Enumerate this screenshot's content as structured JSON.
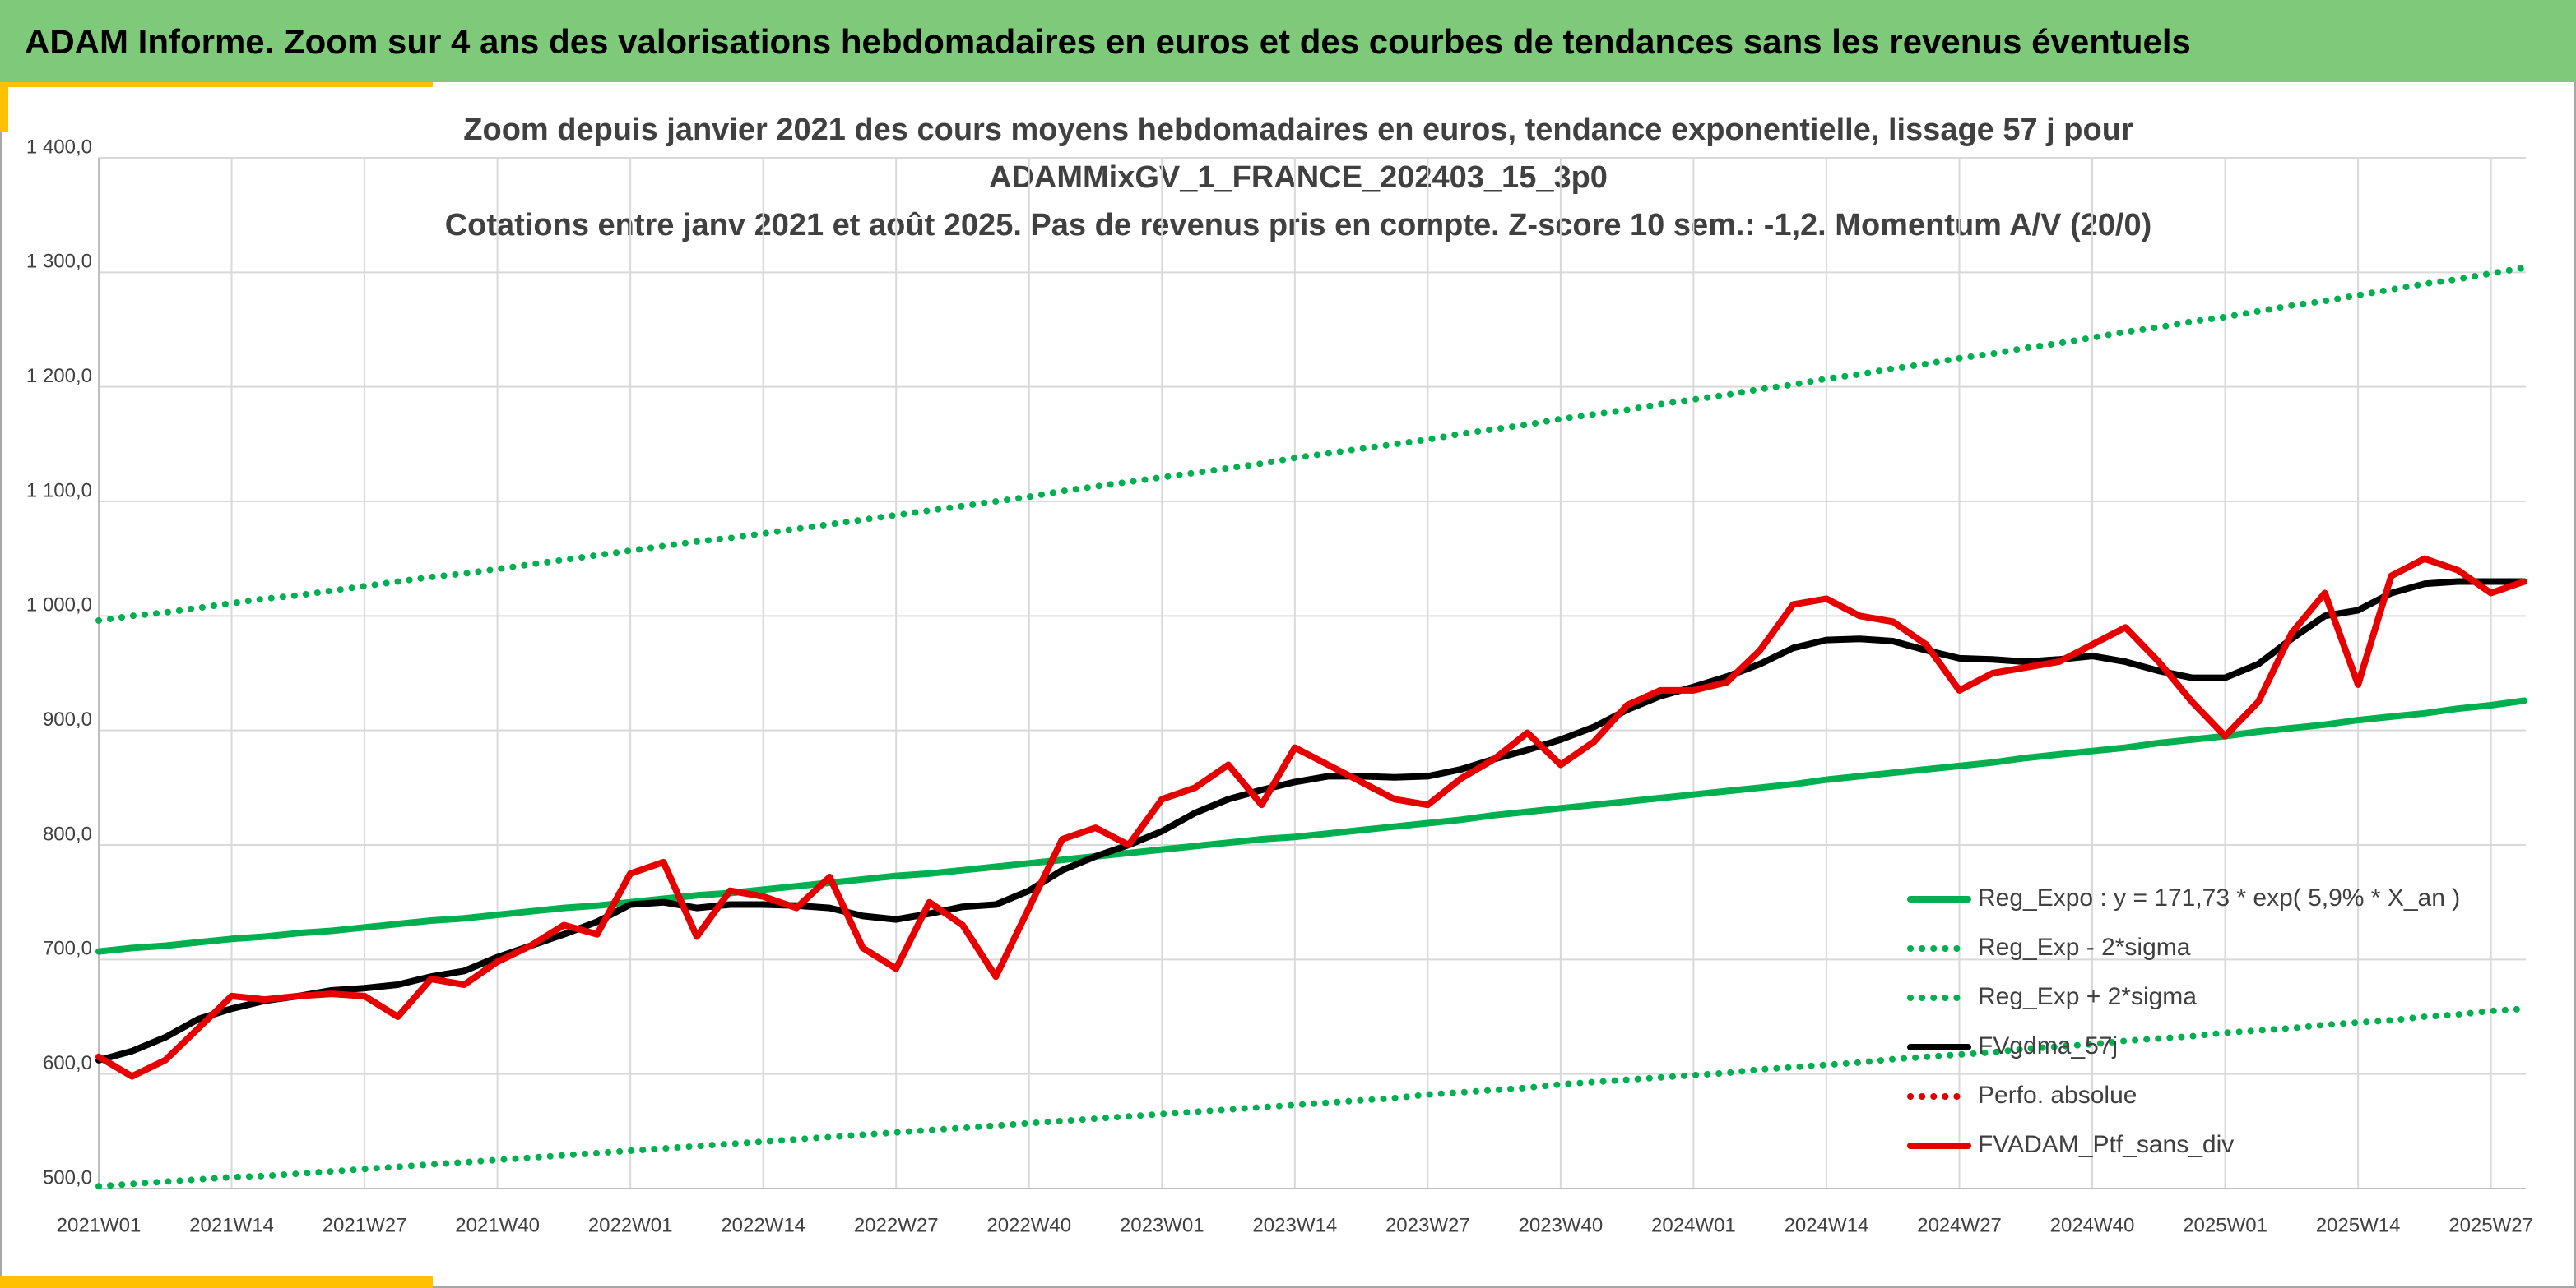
{
  "header": {
    "title": "ADAM Informe. Zoom sur 4 ans des valorisations hebdomadaires en euros et des courbes de tendances sans les revenus éventuels"
  },
  "chart_data": {
    "type": "line",
    "title": [
      "Zoom depuis janvier 2021 des cours moyens hebdomadaires en euros, tendance exponentielle, lissage 57 j pour",
      "ADAMMixGV_1_FRANCE_202403_15_3p0",
      "Cotations entre janv 2021 et août 2025. Pas de revenus pris en compte. Z-score 10 sem.: -1,2. Momentum A/V (20/0)"
    ],
    "categories": [
      "2021W01",
      null,
      null,
      null,
      "2021W14",
      null,
      null,
      null,
      "2021W27",
      null,
      null,
      null,
      "2021W40",
      null,
      null,
      null,
      "2022W01",
      null,
      null,
      null,
      "2022W14",
      null,
      null,
      null,
      "2022W27",
      null,
      null,
      null,
      "2022W40",
      null,
      null,
      null,
      "2023W01",
      null,
      null,
      null,
      "2023W14",
      null,
      null,
      null,
      "2023W27",
      null,
      null,
      null,
      "2023W40",
      null,
      null,
      null,
      "2024W01",
      null,
      null,
      null,
      "2024W14",
      null,
      null,
      null,
      "2024W27",
      null,
      null,
      null,
      "2024W40",
      null,
      null,
      null,
      "2025W01",
      null,
      null,
      null,
      "2025W14",
      null,
      null,
      null,
      "2025W27",
      null
    ],
    "ylim": [
      500,
      1400
    ],
    "yticks": [
      {
        "value": 500,
        "label": "500,0"
      },
      {
        "value": 600,
        "label": "600,0"
      },
      {
        "value": 700,
        "label": "700,0"
      },
      {
        "value": 800,
        "label": "800,0"
      },
      {
        "value": 900,
        "label": "900,0"
      },
      {
        "value": 1000,
        "label": "1 000,0"
      },
      {
        "value": 1100,
        "label": "1 100,0"
      },
      {
        "value": 1200,
        "label": "1 200,0"
      },
      {
        "value": 1300,
        "label": "1 300,0"
      },
      {
        "value": 1400,
        "label": "1 400,0"
      }
    ],
    "grid": true,
    "legend": "right",
    "series": [
      {
        "name": "Reg_Expo : y = 171,73 * exp( 5,9% *  X_an )",
        "color": "#00b050",
        "style": "solid",
        "values": [
          707,
          710,
          712,
          715,
          718,
          720,
          723,
          725,
          728,
          731,
          734,
          736,
          739,
          742,
          745,
          747,
          750,
          753,
          756,
          758,
          761,
          764,
          767,
          770,
          773,
          775,
          778,
          781,
          784,
          787,
          790,
          793,
          796,
          799,
          802,
          805,
          807,
          810,
          813,
          816,
          819,
          822,
          826,
          829,
          832,
          835,
          838,
          841,
          844,
          847,
          850,
          853,
          857,
          860,
          863,
          866,
          869,
          872,
          876,
          879,
          882,
          885,
          889,
          892,
          895,
          899,
          902,
          905,
          909,
          912,
          915,
          919,
          922,
          926
        ]
      },
      {
        "name": "Reg_Exp - 2*sigma",
        "color": "#00b050",
        "style": "dotted",
        "values": [
          502,
          504,
          506,
          508,
          510,
          511,
          513,
          515,
          517,
          519,
          521,
          523,
          525,
          527,
          529,
          531,
          533,
          535,
          537,
          539,
          541,
          543,
          545,
          547,
          549,
          551,
          553,
          555,
          557,
          559,
          561,
          563,
          565,
          567,
          569,
          571,
          573,
          575,
          577,
          579,
          582,
          584,
          586,
          588,
          591,
          593,
          595,
          597,
          599,
          601,
          604,
          606,
          608,
          610,
          613,
          615,
          617,
          619,
          622,
          624,
          626,
          629,
          631,
          633,
          636,
          638,
          640,
          643,
          645,
          647,
          650,
          652,
          655,
          657
        ]
      },
      {
        "name": "Reg_Exp + 2*sigma",
        "color": "#00b050",
        "style": "dotted",
        "values": [
          996,
          1000,
          1003,
          1007,
          1011,
          1015,
          1018,
          1022,
          1026,
          1030,
          1034,
          1037,
          1041,
          1045,
          1049,
          1053,
          1057,
          1061,
          1065,
          1068,
          1072,
          1076,
          1080,
          1084,
          1088,
          1092,
          1096,
          1100,
          1104,
          1109,
          1113,
          1117,
          1121,
          1125,
          1129,
          1133,
          1138,
          1142,
          1146,
          1150,
          1154,
          1159,
          1163,
          1167,
          1172,
          1176,
          1180,
          1185,
          1189,
          1193,
          1198,
          1202,
          1207,
          1211,
          1216,
          1220,
          1225,
          1229,
          1234,
          1238,
          1243,
          1248,
          1252,
          1257,
          1261,
          1266,
          1271,
          1275,
          1280,
          1285,
          1290,
          1294,
          1299,
          1304
        ]
      },
      {
        "name": "FVgdma_57j",
        "color": "#000000",
        "style": "solid",
        "values": [
          612,
          620,
          632,
          648,
          657,
          664,
          668,
          673,
          675,
          678,
          685,
          690,
          702,
          712,
          722,
          733,
          748,
          750,
          745,
          748,
          748,
          747,
          745,
          738,
          735,
          740,
          746,
          748,
          760,
          778,
          790,
          800,
          812,
          828,
          840,
          848,
          855,
          860,
          860,
          859,
          860,
          866,
          875,
          883,
          892,
          903,
          918,
          930,
          938,
          947,
          958,
          972,
          979,
          980,
          978,
          970,
          963,
          962,
          960,
          962,
          965,
          960,
          952,
          946,
          946,
          958,
          980,
          1000,
          1005,
          1020,
          1028,
          1030,
          1030,
          1030
        ]
      },
      {
        "name": "Perfo. absolue",
        "color": "#e00000",
        "style": "dotted",
        "values": [
          null,
          null,
          null,
          null,
          null,
          null,
          null,
          null,
          null,
          null,
          null,
          null,
          null,
          null,
          null,
          null,
          null,
          null,
          null,
          null,
          null,
          null,
          null,
          null,
          null,
          null,
          null,
          null,
          null,
          null,
          null,
          null,
          null,
          null,
          null,
          null,
          null,
          null,
          null,
          null,
          null,
          null,
          null,
          null,
          null,
          null,
          null,
          null,
          null,
          null,
          null,
          null,
          null,
          null,
          null,
          null,
          null,
          null,
          null,
          null,
          null,
          null,
          null,
          null,
          null,
          null,
          null,
          null,
          null,
          null,
          null,
          null,
          null,
          null
        ]
      },
      {
        "name": "FVADAM_Ptf_sans_div",
        "color": "#e60000",
        "style": "solid",
        "values": [
          615,
          598,
          612,
          640,
          668,
          665,
          668,
          670,
          668,
          650,
          683,
          678,
          698,
          712,
          730,
          722,
          775,
          785,
          720,
          760,
          755,
          745,
          772,
          710,
          692,
          750,
          730,
          685,
          745,
          805,
          815,
          800,
          840,
          850,
          870,
          835,
          885,
          870,
          855,
          840,
          835,
          858,
          875,
          898,
          870,
          890,
          922,
          935,
          935,
          942,
          970,
          1010,
          1015,
          1000,
          995,
          975,
          935,
          950,
          955,
          960,
          975,
          990,
          960,
          925,
          895,
          925,
          985,
          1020,
          940,
          1035,
          1050,
          1040,
          1020,
          1030
        ]
      }
    ]
  }
}
